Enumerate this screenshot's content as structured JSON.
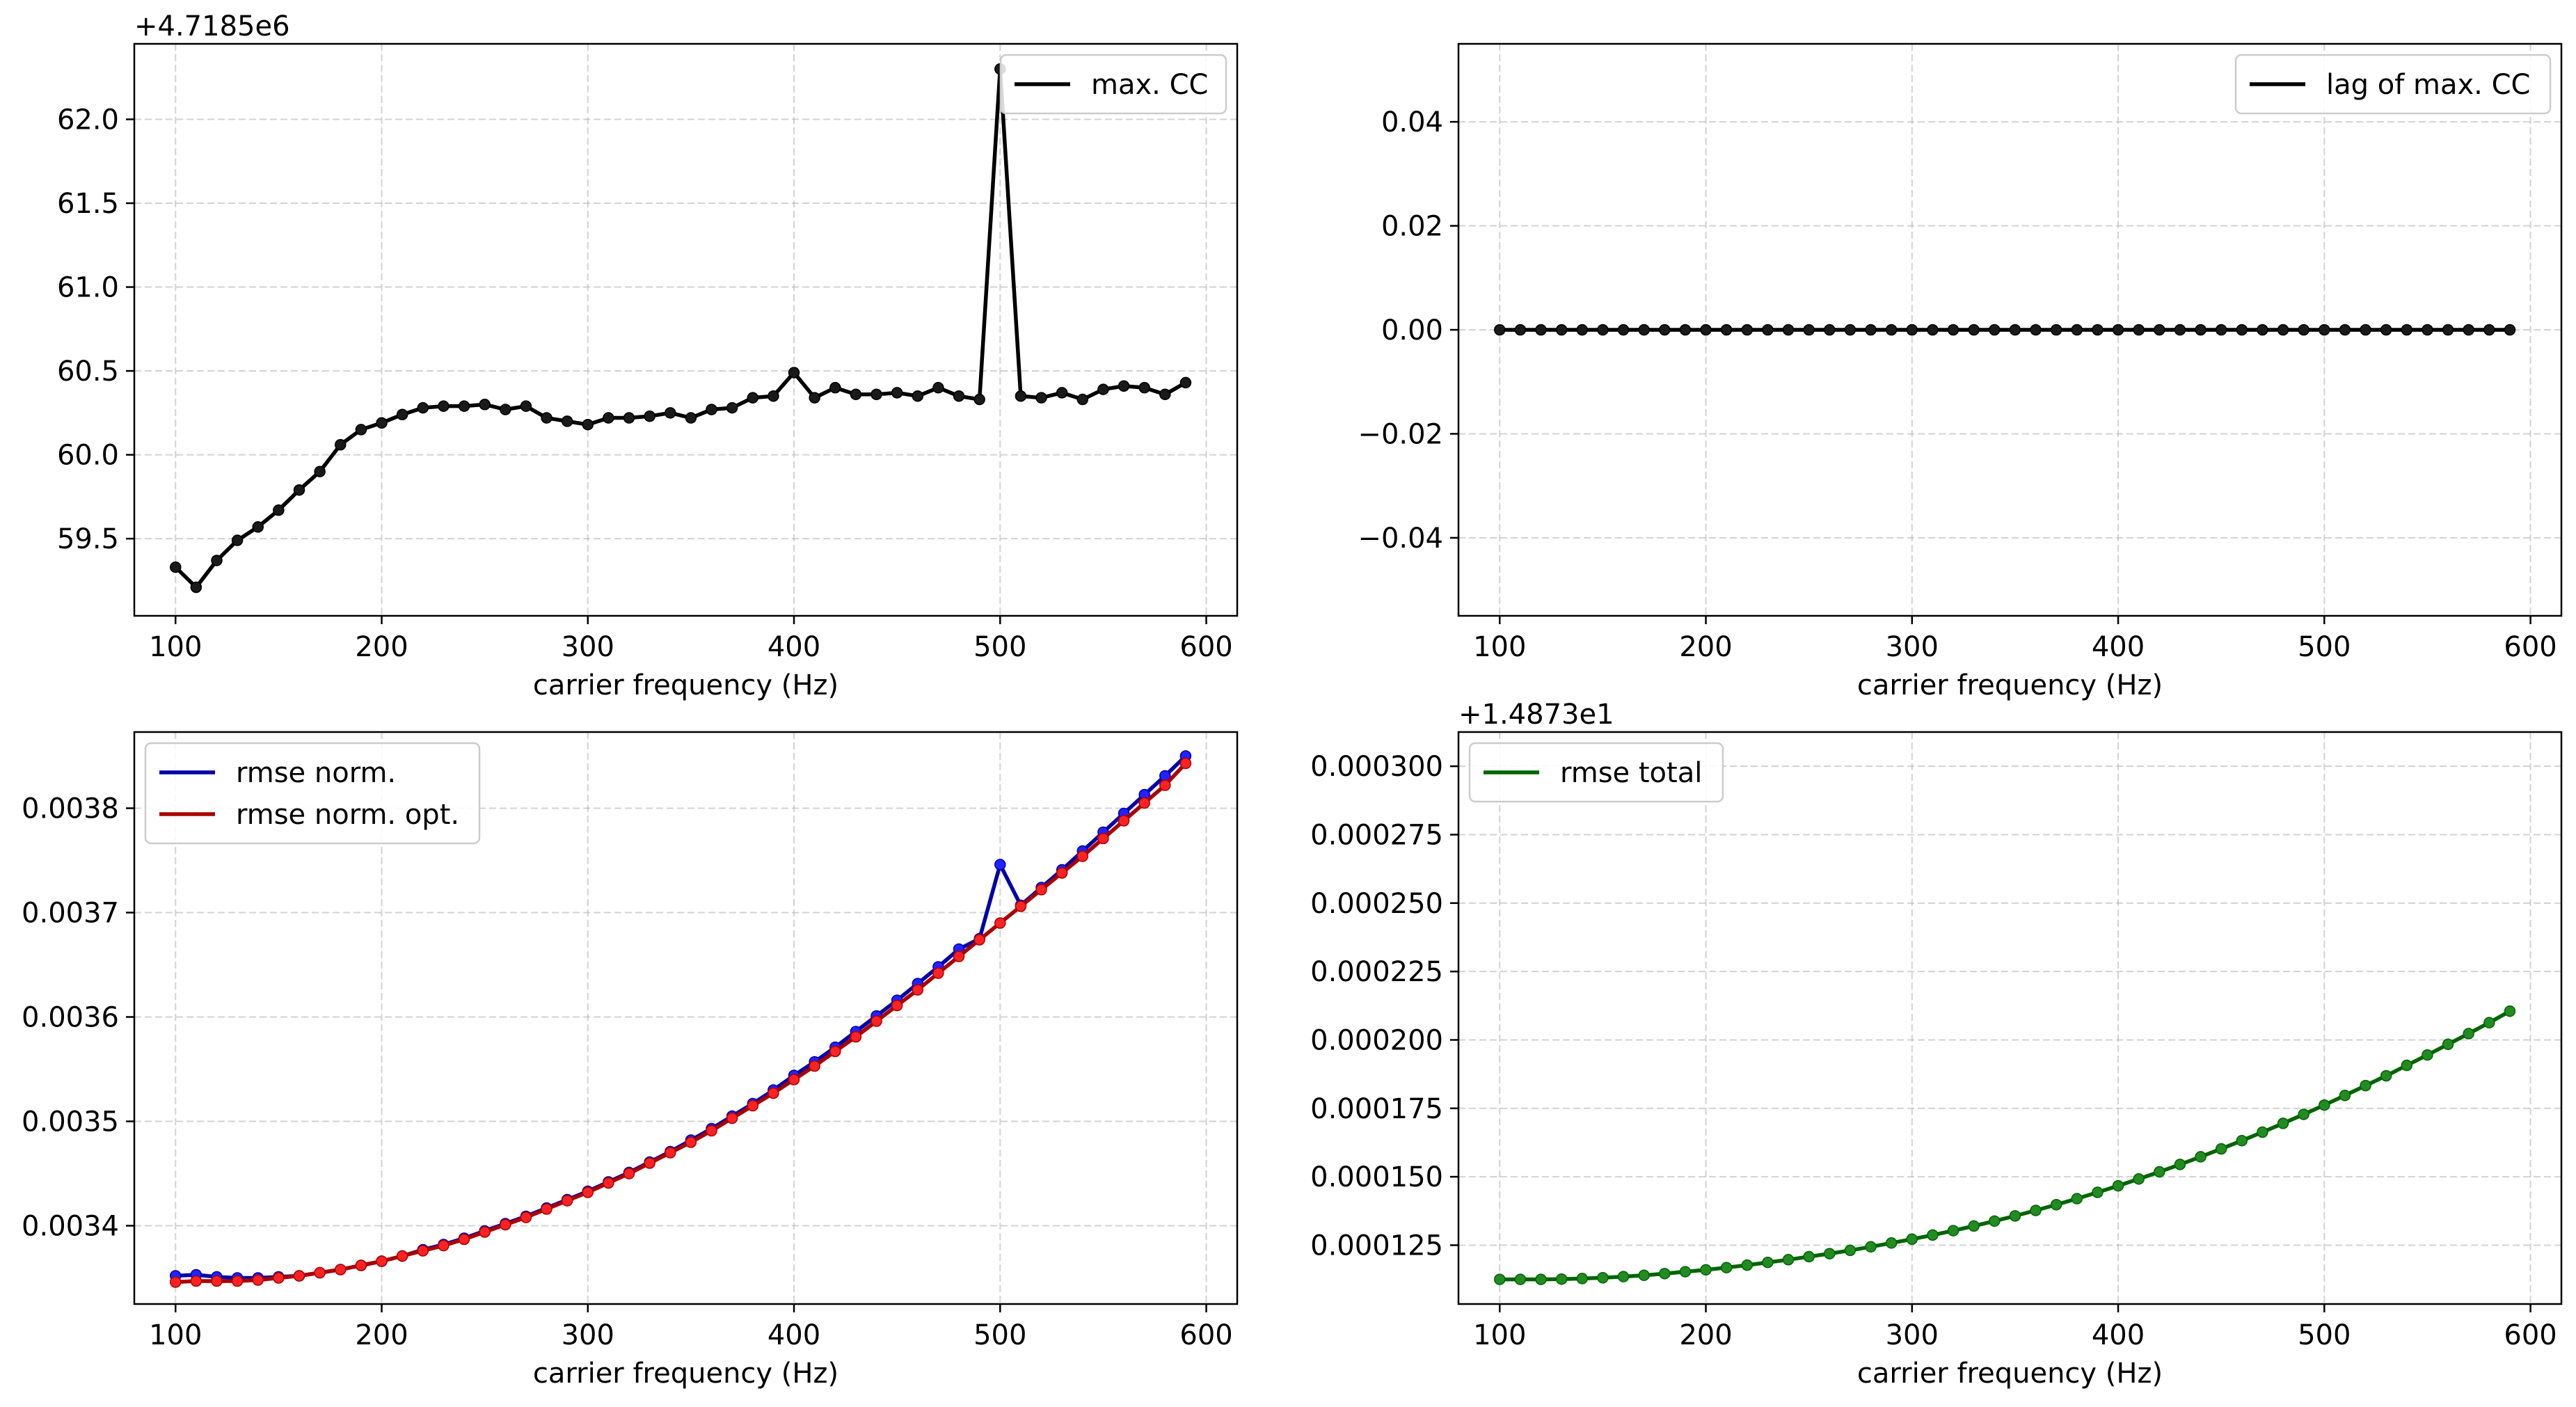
{
  "chart_data": [
    {
      "id": "max_cc",
      "type": "line",
      "offset_label": "+4.7185e6",
      "xlabel": "carrier frequency (Hz)",
      "ylabel": "",
      "xlim": [
        80,
        615
      ],
      "ylim": [
        59.04,
        62.45
      ],
      "xticks": [
        100,
        200,
        300,
        400,
        500,
        600
      ],
      "yticks": [
        59.5,
        60.0,
        60.5,
        61.0,
        61.5,
        62.0
      ],
      "ytick_labels": [
        "59.5",
        "60.0",
        "60.5",
        "61.0",
        "61.5",
        "62.0"
      ],
      "grid": true,
      "legend_position": "upper right",
      "x": [
        100,
        110,
        120,
        130,
        140,
        150,
        160,
        170,
        180,
        190,
        200,
        210,
        220,
        230,
        240,
        250,
        260,
        270,
        280,
        290,
        300,
        310,
        320,
        330,
        340,
        350,
        360,
        370,
        380,
        390,
        400,
        410,
        420,
        430,
        440,
        450,
        460,
        470,
        480,
        490,
        500,
        510,
        520,
        530,
        540,
        550,
        560,
        570,
        580,
        590
      ],
      "series": [
        {
          "name": "max. CC",
          "color": "#000000",
          "marker_color": "#1a1a1a",
          "values": [
            59.33,
            59.21,
            59.37,
            59.49,
            59.57,
            59.67,
            59.79,
            59.9,
            60.06,
            60.15,
            60.19,
            60.24,
            60.28,
            60.29,
            60.29,
            60.3,
            60.27,
            60.29,
            60.22,
            60.2,
            60.18,
            60.22,
            60.22,
            60.23,
            60.25,
            60.22,
            60.27,
            60.28,
            60.34,
            60.35,
            60.49,
            60.34,
            60.4,
            60.36,
            60.36,
            60.37,
            60.35,
            60.4,
            60.35,
            60.33,
            62.3,
            60.35,
            60.34,
            60.37,
            60.33,
            60.39,
            60.41,
            60.4,
            60.36,
            60.43
          ]
        }
      ]
    },
    {
      "id": "lag",
      "type": "line",
      "offset_label": "",
      "xlabel": "carrier frequency (Hz)",
      "ylabel": "",
      "xlim": [
        80,
        615
      ],
      "ylim": [
        -0.055,
        0.055
      ],
      "xticks": [
        100,
        200,
        300,
        400,
        500,
        600
      ],
      "yticks": [
        -0.04,
        -0.02,
        0.0,
        0.02,
        0.04
      ],
      "ytick_labels": [
        "−0.04",
        "−0.02",
        "0.00",
        "0.02",
        "0.04"
      ],
      "grid": true,
      "legend_position": "upper right",
      "x": [
        100,
        110,
        120,
        130,
        140,
        150,
        160,
        170,
        180,
        190,
        200,
        210,
        220,
        230,
        240,
        250,
        260,
        270,
        280,
        290,
        300,
        310,
        320,
        330,
        340,
        350,
        360,
        370,
        380,
        390,
        400,
        410,
        420,
        430,
        440,
        450,
        460,
        470,
        480,
        490,
        500,
        510,
        520,
        530,
        540,
        550,
        560,
        570,
        580,
        590
      ],
      "series": [
        {
          "name": "lag of max. CC",
          "color": "#000000",
          "marker_color": "#1a1a1a",
          "values": [
            0,
            0,
            0,
            0,
            0,
            0,
            0,
            0,
            0,
            0,
            0,
            0,
            0,
            0,
            0,
            0,
            0,
            0,
            0,
            0,
            0,
            0,
            0,
            0,
            0,
            0,
            0,
            0,
            0,
            0,
            0,
            0,
            0,
            0,
            0,
            0,
            0,
            0,
            0,
            0,
            0,
            0,
            0,
            0,
            0,
            0,
            0,
            0,
            0,
            0
          ]
        }
      ]
    },
    {
      "id": "rmse_norm",
      "type": "line",
      "offset_label": "",
      "xlabel": "carrier frequency (Hz)",
      "ylabel": "",
      "xlim": [
        80,
        615
      ],
      "ylim": [
        0.003325,
        0.003873
      ],
      "xticks": [
        100,
        200,
        300,
        400,
        500,
        600
      ],
      "yticks": [
        0.0034,
        0.0035,
        0.0036,
        0.0037,
        0.0038
      ],
      "ytick_labels": [
        "0.0034",
        "0.0035",
        "0.0036",
        "0.0037",
        "0.0038"
      ],
      "grid": true,
      "legend_position": "upper left",
      "x": [
        100,
        110,
        120,
        130,
        140,
        150,
        160,
        170,
        180,
        190,
        200,
        210,
        220,
        230,
        240,
        250,
        260,
        270,
        280,
        290,
        300,
        310,
        320,
        330,
        340,
        350,
        360,
        370,
        380,
        390,
        400,
        410,
        420,
        430,
        440,
        450,
        460,
        470,
        480,
        490,
        500,
        510,
        520,
        530,
        540,
        550,
        560,
        570,
        580,
        590
      ],
      "series": [
        {
          "name": "rmse norm.",
          "color": "#0000aa",
          "marker_color": "#2222ff",
          "values": [
            0.003352,
            0.003353,
            0.003351,
            0.00335,
            0.00335,
            0.003351,
            0.003352,
            0.003355,
            0.003358,
            0.003362,
            0.003366,
            0.003371,
            0.003377,
            0.003382,
            0.003388,
            0.003395,
            0.003402,
            0.003409,
            0.003417,
            0.003425,
            0.003433,
            0.003442,
            0.003451,
            0.003461,
            0.003471,
            0.003482,
            0.003493,
            0.003505,
            0.003517,
            0.00353,
            0.003544,
            0.003557,
            0.003571,
            0.003586,
            0.003601,
            0.003616,
            0.003632,
            0.003648,
            0.003665,
            0.003675,
            0.003746,
            0.003707,
            0.003724,
            0.003741,
            0.003759,
            0.003777,
            0.003795,
            0.003813,
            0.003831,
            0.00385
          ]
        },
        {
          "name": "rmse norm. opt.",
          "color": "#aa0000",
          "marker_color": "#ff2222",
          "values": [
            0.003346,
            0.003347,
            0.003347,
            0.003347,
            0.003348,
            0.00335,
            0.003352,
            0.003355,
            0.003358,
            0.003362,
            0.003366,
            0.003371,
            0.003376,
            0.003381,
            0.003387,
            0.003394,
            0.003401,
            0.003408,
            0.003416,
            0.003424,
            0.003432,
            0.003441,
            0.00345,
            0.00346,
            0.00347,
            0.00348,
            0.003491,
            0.003503,
            0.003515,
            0.003527,
            0.00354,
            0.003553,
            0.003567,
            0.003581,
            0.003596,
            0.003611,
            0.003626,
            0.003642,
            0.003658,
            0.003674,
            0.00369,
            0.003706,
            0.003722,
            0.003738,
            0.003754,
            0.003771,
            0.003788,
            0.003805,
            0.003822,
            0.003843
          ]
        }
      ]
    },
    {
      "id": "rmse_total",
      "type": "line",
      "offset_label": "+1.4873e1",
      "xlabel": "carrier frequency (Hz)",
      "ylabel": "",
      "xlim": [
        80,
        615
      ],
      "ylim": [
        0.0001035,
        0.0003125
      ],
      "xticks": [
        100,
        200,
        300,
        400,
        500,
        600
      ],
      "yticks": [
        0.000125,
        0.00015,
        0.000175,
        0.0002,
        0.000225,
        0.00025,
        0.000275,
        0.0003
      ],
      "ytick_labels": [
        "0.000125",
        "0.000150",
        "0.000175",
        "0.000200",
        "0.000225",
        "0.000250",
        "0.000275",
        "0.000300"
      ],
      "grid": true,
      "legend_position": "upper left",
      "x": [
        100,
        110,
        120,
        130,
        140,
        150,
        160,
        170,
        180,
        190,
        200,
        210,
        220,
        230,
        240,
        250,
        260,
        270,
        280,
        290,
        300,
        310,
        320,
        330,
        340,
        350,
        360,
        370,
        380,
        390,
        400,
        410,
        420,
        430,
        440,
        450,
        460,
        470,
        480,
        490,
        500,
        510,
        520,
        530,
        540,
        550,
        560,
        570,
        580,
        590
      ],
      "series": [
        {
          "name": "rmse total",
          "color": "#006400",
          "marker_color": "#228b22",
          "values": [
            0.0001125,
            0.0001125,
            0.0001125,
            0.0001126,
            0.0001128,
            0.0001131,
            0.0001135,
            0.000114,
            0.0001146,
            0.0001153,
            0.000116,
            0.0001168,
            0.0001177,
            0.0001187,
            0.0001197,
            0.0001208,
            0.0001219,
            0.0001231,
            0.0001244,
            0.0001258,
            0.0001272,
            0.0001287,
            0.0001303,
            0.000132,
            0.0001338,
            0.0001357,
            0.0001377,
            0.0001398,
            0.000142,
            0.0001443,
            0.0001467,
            0.0001492,
            0.0001518,
            0.0001545,
            0.0001573,
            0.0001602,
            0.0001632,
            0.0001663,
            0.0001695,
            0.0001728,
            0.0001762,
            0.0001797,
            0.0001833,
            0.0001869,
            0.0001907,
            0.0001945,
            0.0001984,
            0.0002023,
            0.0002063,
            0.0002105
          ]
        }
      ]
    }
  ]
}
